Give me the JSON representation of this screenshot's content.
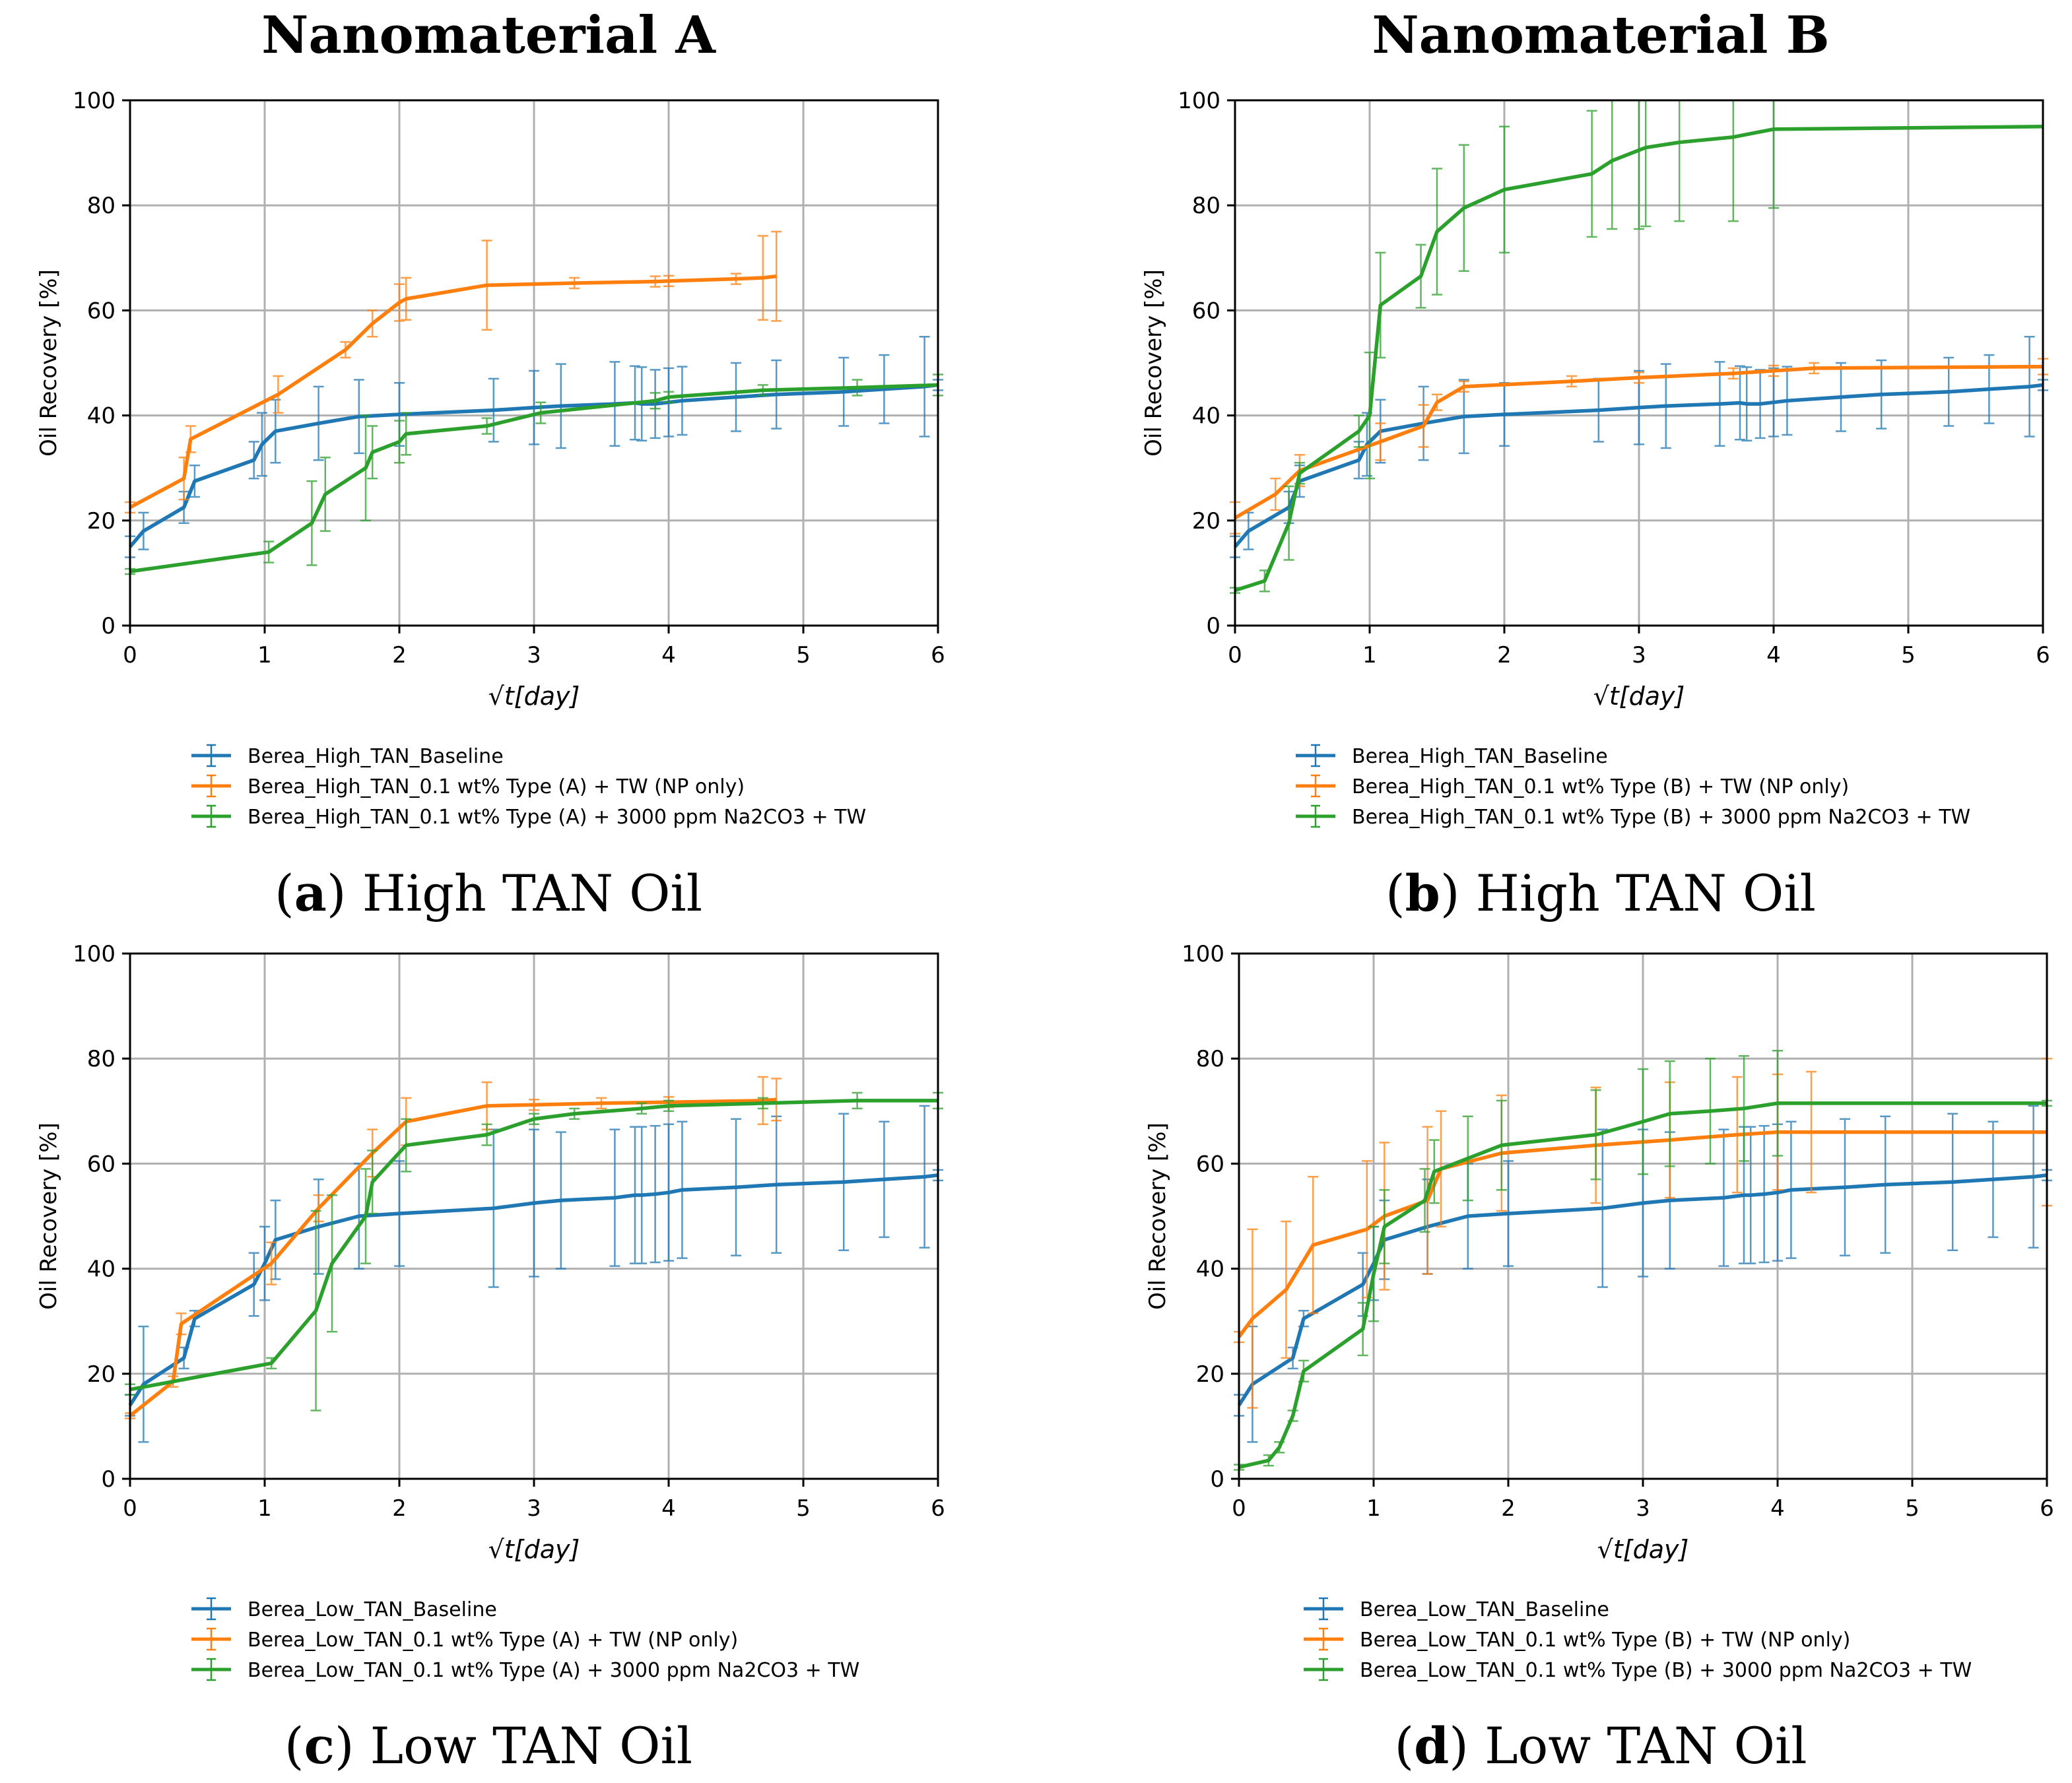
{
  "figure": {
    "column_titles": [
      "Nanomaterial A",
      "Nanomaterial B"
    ]
  },
  "colors": {
    "baseline": "#1f77b4",
    "np_only": "#ff7f0e",
    "na2co3": "#2ca02c",
    "grid": "#b0b0b0"
  },
  "chart_data": [
    {
      "id": "a",
      "type": "line",
      "caption_letter": "a",
      "caption_text": " High TAN Oil",
      "xlabel": "√t[day]",
      "ylabel": "Oil Recovery [%]",
      "xlim": [
        0,
        6
      ],
      "ylim": [
        0,
        100
      ],
      "xticks": [
        "0",
        "1",
        "2",
        "3",
        "4",
        "5",
        "6"
      ],
      "yticks": [
        "0",
        "20",
        "40",
        "60",
        "80",
        "100"
      ],
      "grid": true,
      "legend_position": "below",
      "series": [
        {
          "name": "Berea_High_TAN_Baseline",
          "color": "#1f77b4",
          "x": [
            0,
            0.1,
            0.4,
            0.48,
            0.92,
            0.98,
            1.08,
            1.4,
            1.7,
            2.0,
            2.7,
            3.0,
            3.2,
            3.6,
            3.75,
            3.8,
            3.9,
            4.0,
            4.1,
            4.5,
            4.8,
            5.3,
            5.6,
            5.9,
            6.0
          ],
          "y": [
            15,
            18,
            22.5,
            27.5,
            31.5,
            34.5,
            37,
            38.5,
            39.8,
            40.2,
            41,
            41.5,
            41.8,
            42.2,
            42.4,
            42.2,
            42.2,
            42.5,
            42.8,
            43.5,
            44,
            44.5,
            45,
            45.5,
            45.8
          ],
          "err": [
            2,
            3.5,
            3,
            3,
            3.5,
            6,
            6,
            7,
            7,
            6,
            6,
            7,
            8,
            8,
            7,
            7,
            6.5,
            6.5,
            6.5,
            6.5,
            6.5,
            6.5,
            6.5,
            9.5,
            1
          ]
        },
        {
          "name": "Berea_High_TAN_0.1 wt% Type (A) + TW (NP only)",
          "color": "#ff7f0e",
          "x": [
            0,
            0.4,
            0.45,
            1.1,
            1.6,
            1.8,
            2.0,
            2.05,
            2.65,
            3.3,
            3.9,
            4.0,
            4.5,
            4.7,
            4.8
          ],
          "y": [
            22.5,
            28,
            35.5,
            44,
            52.5,
            57.5,
            61.5,
            62.2,
            64.8,
            65.2,
            65.5,
            65.6,
            66,
            66.2,
            66.5
          ],
          "err": [
            1,
            4,
            2.5,
            3.5,
            1.5,
            2.5,
            3.5,
            4,
            8.5,
            1,
            1,
            1,
            1,
            8,
            8.5
          ]
        },
        {
          "name": "Berea_High_TAN_0.1 wt% Type (A) + 3000 ppm Na2CO3 + TW",
          "color": "#2ca02c",
          "x": [
            0,
            1.03,
            1.35,
            1.45,
            1.75,
            1.8,
            2.0,
            2.05,
            2.65,
            3.05,
            3.9,
            4.0,
            4.7,
            5.4,
            6.0
          ],
          "y": [
            10.3,
            14,
            19.5,
            25,
            30,
            33,
            35,
            36.5,
            38,
            40.5,
            42.8,
            43.5,
            44.8,
            45.3,
            45.8
          ],
          "err": [
            0.5,
            2,
            8,
            7,
            10,
            5,
            4,
            4,
            1.5,
            2,
            1.5,
            1,
            1,
            1.5,
            2
          ]
        }
      ]
    },
    {
      "id": "b",
      "type": "line",
      "caption_letter": "b",
      "caption_text": " High TAN Oil",
      "xlabel": "√t[day]",
      "ylabel": "Oil Recovery [%]",
      "xlim": [
        0,
        6
      ],
      "ylim": [
        0,
        100
      ],
      "xticks": [
        "0",
        "1",
        "2",
        "3",
        "4",
        "5",
        "6"
      ],
      "yticks": [
        "0",
        "20",
        "40",
        "60",
        "80",
        "100"
      ],
      "grid": true,
      "legend_position": "below",
      "series": [
        {
          "name": "Berea_High_TAN_Baseline",
          "color": "#1f77b4",
          "x": [
            0,
            0.1,
            0.4,
            0.48,
            0.92,
            0.98,
            1.08,
            1.4,
            1.7,
            2.0,
            2.7,
            3.0,
            3.2,
            3.6,
            3.75,
            3.8,
            3.9,
            4.0,
            4.1,
            4.5,
            4.8,
            5.3,
            5.6,
            5.9,
            6.0
          ],
          "y": [
            15,
            18,
            22.5,
            27.5,
            31.5,
            34.5,
            37,
            38.5,
            39.8,
            40.2,
            41,
            41.5,
            41.8,
            42.2,
            42.4,
            42.2,
            42.2,
            42.5,
            42.8,
            43.5,
            44,
            44.5,
            45,
            45.5,
            45.8
          ],
          "err": [
            2,
            3.5,
            3,
            3,
            3.5,
            6,
            6,
            7,
            7,
            6,
            6,
            7,
            8,
            8,
            7,
            7,
            6.5,
            6.5,
            6.5,
            6.5,
            6.5,
            6.5,
            6.5,
            9.5,
            1
          ]
        },
        {
          "name": "Berea_High_TAN_0.1 wt% Type (B) + TW (NP only)",
          "color": "#ff7f0e",
          "x": [
            0,
            0.3,
            0.48,
            1.08,
            1.4,
            1.5,
            1.7,
            2.5,
            3.0,
            3.7,
            4.0,
            4.3,
            6.0
          ],
          "y": [
            20.5,
            25,
            29.5,
            35,
            38,
            42.5,
            45.5,
            46.5,
            47.2,
            48,
            48.5,
            49,
            49.3
          ],
          "err": [
            3,
            3,
            3,
            3.5,
            4,
            1.5,
            1,
            1,
            1,
            1,
            1,
            1,
            1.5
          ]
        },
        {
          "name": "Berea_High_TAN_0.1 wt% Type (B) + 3000 ppm Na2CO3 + TW",
          "color": "#2ca02c",
          "x": [
            0,
            0.22,
            0.4,
            0.48,
            0.92,
            1.0,
            1.08,
            1.38,
            1.5,
            1.7,
            2.0,
            2.65,
            2.8,
            3.0,
            3.05,
            3.3,
            3.7,
            4.0,
            6.0
          ],
          "y": [
            6.7,
            8.5,
            19.5,
            29,
            37,
            40,
            61,
            66.5,
            75,
            79.5,
            83,
            86,
            88.5,
            90.5,
            91,
            92,
            93,
            94.5,
            95
          ],
          "err": [
            0.5,
            2,
            7,
            2,
            3,
            12,
            10,
            6,
            12,
            12,
            12,
            12,
            13,
            15,
            15,
            15,
            16,
            15,
            0
          ]
        }
      ]
    },
    {
      "id": "c",
      "type": "line",
      "caption_letter": "c",
      "caption_text": " Low TAN Oil",
      "xlabel": "√t[day]",
      "ylabel": "Oil Recovery [%]",
      "xlim": [
        0,
        6
      ],
      "ylim": [
        0,
        100
      ],
      "xticks": [
        "0",
        "1",
        "2",
        "3",
        "4",
        "5",
        "6"
      ],
      "yticks": [
        "0",
        "20",
        "40",
        "60",
        "80",
        "100"
      ],
      "grid": true,
      "legend_position": "below",
      "series": [
        {
          "name": "Berea_Low_TAN_Baseline",
          "color": "#1f77b4",
          "x": [
            0,
            0.1,
            0.4,
            0.48,
            0.92,
            1.0,
            1.08,
            1.4,
            1.7,
            2.0,
            2.7,
            3.0,
            3.2,
            3.6,
            3.75,
            3.8,
            3.9,
            4.0,
            4.1,
            4.5,
            4.8,
            5.3,
            5.6,
            5.9,
            6.0
          ],
          "y": [
            14,
            18,
            23,
            30.5,
            37,
            41,
            45.5,
            48,
            50,
            50.5,
            51.5,
            52.5,
            53,
            53.5,
            54,
            54,
            54.2,
            54.5,
            55,
            55.5,
            56,
            56.5,
            57,
            57.5,
            57.8
          ],
          "err": [
            2,
            11,
            2,
            1.5,
            6,
            7,
            7.5,
            9,
            10,
            10,
            15,
            14,
            13,
            13,
            13,
            13,
            13,
            13,
            13,
            13,
            13,
            13,
            11,
            13.5,
            1
          ]
        },
        {
          "name": "Berea_Low_TAN_0.1 wt% Type (A) + TW (NP only)",
          "color": "#ff7f0e",
          "x": [
            0,
            0.32,
            0.38,
            1.05,
            1.4,
            1.8,
            2.05,
            2.65,
            3.0,
            3.5,
            4.0,
            4.7,
            4.8
          ],
          "y": [
            12,
            18.5,
            29.5,
            41,
            51.5,
            62,
            68,
            71,
            71.2,
            71.5,
            71.7,
            72,
            72.2
          ],
          "err": [
            0.5,
            1,
            2,
            4,
            2.5,
            4.5,
            4.5,
            4.5,
            1,
            1,
            1,
            4.5,
            4
          ]
        },
        {
          "name": "Berea_Low_TAN_0.1 wt% Type (A) + 3000 ppm Na2CO3 + TW",
          "color": "#2ca02c",
          "x": [
            0,
            1.05,
            1.38,
            1.5,
            1.75,
            1.8,
            2.05,
            2.65,
            3.0,
            3.3,
            3.8,
            4.0,
            4.7,
            5.4,
            6.0
          ],
          "y": [
            17,
            22,
            32,
            41,
            50,
            56.5,
            63.5,
            65.5,
            68.5,
            69.5,
            70.5,
            71,
            71.5,
            72,
            72
          ],
          "err": [
            1,
            1,
            19,
            13,
            9,
            6,
            5,
            2,
            1,
            1,
            1,
            1,
            1,
            1.5,
            1.5
          ]
        }
      ]
    },
    {
      "id": "d",
      "type": "line",
      "caption_letter": "d",
      "caption_text": " Low TAN Oil",
      "xlabel": "√t[day]",
      "ylabel": "Oil Recovery [%]",
      "xlim": [
        0,
        6
      ],
      "ylim": [
        0,
        100
      ],
      "xticks": [
        "0",
        "1",
        "2",
        "3",
        "4",
        "5",
        "6"
      ],
      "yticks": [
        "0",
        "20",
        "40",
        "60",
        "80",
        "100"
      ],
      "grid": true,
      "legend_position": "below",
      "series": [
        {
          "name": "Berea_Low_TAN_Baseline",
          "color": "#1f77b4",
          "x": [
            0,
            0.1,
            0.4,
            0.48,
            0.92,
            1.0,
            1.08,
            1.4,
            1.7,
            2.0,
            2.7,
            3.0,
            3.2,
            3.6,
            3.75,
            3.8,
            3.9,
            4.0,
            4.1,
            4.5,
            4.8,
            5.3,
            5.6,
            5.9,
            6.0
          ],
          "y": [
            14,
            18,
            23,
            30.5,
            37,
            41,
            45.5,
            48,
            50,
            50.5,
            51.5,
            52.5,
            53,
            53.5,
            54,
            54,
            54.2,
            54.5,
            55,
            55.5,
            56,
            56.5,
            57,
            57.5,
            57.8
          ],
          "err": [
            2,
            11,
            2,
            1.5,
            6,
            7,
            7.5,
            9,
            10,
            10,
            15,
            14,
            13,
            13,
            13,
            13,
            13,
            13,
            13,
            13,
            13,
            13,
            11,
            13.5,
            1
          ]
        },
        {
          "name": "Berea_Low_TAN_0.1 wt% Type (B) + TW (NP only)",
          "color": "#ff7f0e",
          "x": [
            0,
            0.1,
            0.35,
            0.55,
            0.95,
            1.08,
            1.4,
            1.5,
            1.95,
            2.65,
            3.2,
            3.7,
            4.0,
            4.25,
            6.0
          ],
          "y": [
            27,
            30.5,
            36,
            44.5,
            47.5,
            50,
            53,
            59,
            62,
            63.5,
            64.5,
            65.5,
            66,
            66,
            66
          ],
          "err": [
            1,
            17,
            13,
            13,
            13,
            14,
            14,
            11,
            11,
            11,
            11,
            11,
            11,
            11.5,
            14
          ]
        },
        {
          "name": "Berea_Low_TAN_0.1 wt% Type (B) + 3000 ppm Na2CO3 + TW",
          "color": "#2ca02c",
          "x": [
            0,
            0.22,
            0.3,
            0.4,
            0.48,
            0.92,
            1.0,
            1.08,
            1.38,
            1.45,
            1.7,
            1.95,
            2.65,
            3.0,
            3.2,
            3.5,
            3.75,
            4.0,
            6.0
          ],
          "y": [
            2.2,
            3.5,
            6,
            12,
            20.5,
            28.5,
            39,
            48,
            53,
            58.5,
            61,
            63.5,
            65.5,
            68,
            69.5,
            70,
            70.5,
            71.5,
            71.5
          ],
          "err": [
            0.5,
            1,
            1,
            1,
            2,
            5,
            9,
            7,
            6,
            6,
            8,
            8.5,
            8.5,
            10,
            10,
            10,
            10,
            10,
            0.5
          ]
        }
      ]
    }
  ]
}
